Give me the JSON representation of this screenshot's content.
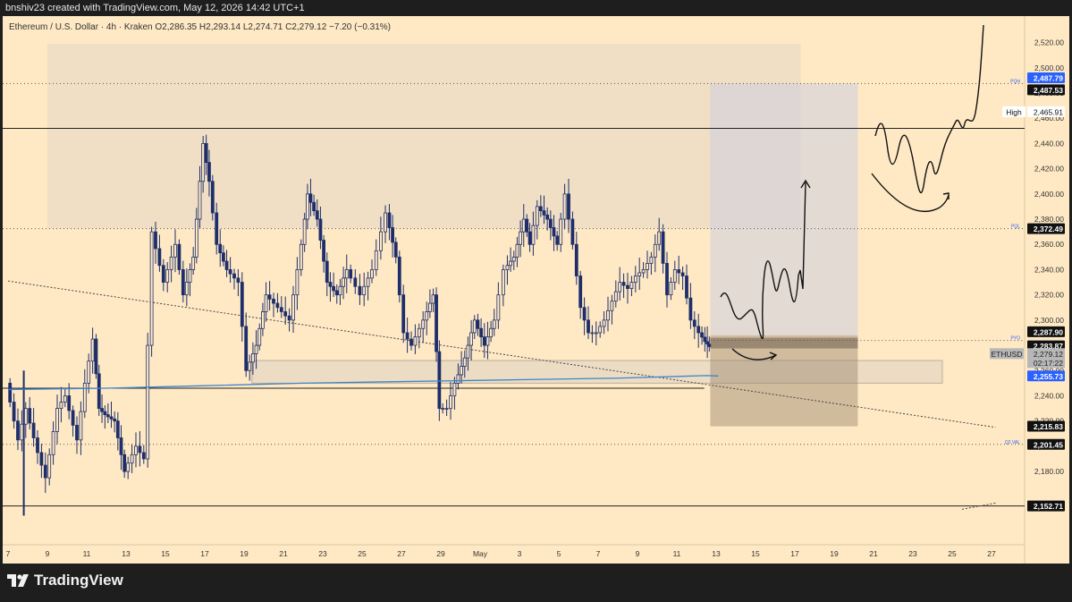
{
  "header": {
    "attribution": "bnshiv23 created with TradingView.com, May 12, 2026 14:42 UTC+1"
  },
  "legend": {
    "symbol": "Ethereum / U.S. Dollar · 4h · Kraken",
    "open": "O2,286.35",
    "high": "H2,293.14",
    "low": "L2,274.71",
    "close": "C2,279.12",
    "change": "−7.20 (−0.31%)"
  },
  "footer": {
    "brand": "TradingView"
  },
  "colors": {
    "background": "#ffe9c4",
    "up": "#1e2e6b",
    "down": "#1e2e6b",
    "ma": "#3d86c9",
    "price_tag": "#000000",
    "ma_tag": "#2962ff",
    "high_tag": "#ffffff"
  },
  "chart_data": {
    "type": "candlestick",
    "symbol": "ETHUSD",
    "timeframe": "4h",
    "ylim": [
      2140,
      2530
    ],
    "y_ticks": [
      2180,
      2200,
      2220,
      2240,
      2260,
      2280,
      2300,
      2320,
      2340,
      2360,
      2380,
      2400,
      2420,
      2440,
      2460,
      2480,
      2500,
      2520
    ],
    "y_tick_labels": [
      "2,180.00",
      "2,200.00",
      "2,220.00",
      "2,240.00",
      "2,260.00",
      "2,280.00",
      "2,300.00",
      "2,320.00",
      "2,340.00",
      "2,360.00",
      "2,380.00",
      "2,400.00",
      "2,420.00",
      "2,440.00",
      "2,460.00",
      "2,480.00",
      "2,500.00",
      "2,520.00"
    ],
    "x_ticks": [
      7,
      9,
      11,
      13,
      15,
      17,
      19,
      21,
      23,
      25,
      27,
      29,
      31,
      33,
      35,
      37,
      39,
      41,
      43,
      45,
      47,
      49,
      51,
      53,
      55,
      57
    ],
    "x_tick_labels": [
      "7",
      "9",
      "11",
      "13",
      "15",
      "17",
      "19",
      "21",
      "23",
      "25",
      "27",
      "29",
      "May",
      "3",
      "5",
      "7",
      "9",
      "11",
      "13",
      "15",
      "17",
      "19",
      "21",
      "23",
      "25",
      "27"
    ],
    "xlim": [
      7,
      57.2
    ],
    "price_path_x": [
      7,
      7.6,
      8,
      8.6,
      9,
      9.6,
      10,
      10.6,
      11,
      11.4,
      11.7,
      12,
      12.5,
      13,
      13.6,
      14,
      14.4,
      15,
      15.6,
      16,
      16.5,
      17,
      17.3,
      17.7,
      18.2,
      18.8,
      19.2,
      19.7,
      20.2,
      20.8,
      21.4,
      22,
      22.3,
      22.8,
      23.3,
      23.8,
      24.3,
      25,
      25.6,
      26.3,
      26.8,
      27.2,
      27.6,
      28.2,
      28.7,
      29,
      29.4,
      29.8,
      30.3,
      30.8,
      31.3,
      31.8,
      32.3,
      32.8,
      33.3,
      33.6,
      34,
      34.5,
      35,
      35.4,
      35.8,
      36.2,
      36.6,
      37,
      37.4,
      37.8,
      38.2,
      38.6,
      39,
      39.4,
      39.8,
      40.2,
      40.6,
      41,
      41.4,
      41.8,
      42.2,
      42.5,
      42.7
    ],
    "price_path_y": [
      2250,
      2205,
      2230,
      2195,
      2175,
      2230,
      2240,
      2205,
      2250,
      2285,
      2230,
      2225,
      2220,
      2180,
      2200,
      2190,
      2370,
      2330,
      2360,
      2320,
      2350,
      2440,
      2410,
      2360,
      2340,
      2330,
      2260,
      2280,
      2320,
      2310,
      2300,
      2360,
      2400,
      2380,
      2330,
      2320,
      2340,
      2320,
      2340,
      2385,
      2350,
      2290,
      2280,
      2300,
      2320,
      2230,
      2230,
      2250,
      2270,
      2300,
      2280,
      2300,
      2340,
      2350,
      2380,
      2360,
      2390,
      2380,
      2360,
      2400,
      2360,
      2310,
      2290,
      2290,
      2300,
      2315,
      2330,
      2325,
      2335,
      2340,
      2350,
      2370,
      2320,
      2340,
      2335,
      2300,
      2290,
      2283,
      2279
    ],
    "moving_average": {
      "x": [
        7,
        12,
        17,
        22,
        26,
        30,
        34,
        38,
        42.5,
        43.1
      ],
      "y": [
        2245,
        2246,
        2248,
        2250,
        2251,
        2252,
        2253,
        2254,
        2256,
        2255.7
      ]
    },
    "price_labels": {
      "pqh": "2,487.79",
      "pqh_level": "2,487.53",
      "high_label": "High",
      "high_value": "2,465.91",
      "pql": "2,372.49",
      "pyo_top": "2,287.90",
      "pyo": "2,283.87",
      "last_symbol": "ETHUSD",
      "last_price": "2,279.12",
      "countdown": "02:17:22",
      "ma_value": "2,255.73",
      "lower_box": "2,215.83",
      "q2val": "2,201.45",
      "bottom": "2,152.71"
    },
    "levels": {
      "pqh": 2487.5,
      "horizontal_high": 2452,
      "pql": 2372.5,
      "pyo": 2283.9,
      "q2val": 2201.5,
      "bottom": 2152.7,
      "support_line": 2246
    },
    "level_tags": {
      "pqh": "PQH",
      "pql": "PQL",
      "pyo": "PYO",
      "q2val": "Q2 VAL"
    },
    "zones": {
      "range_box": {
        "x0": 9,
        "x1": 47.3,
        "y0": 2372.5,
        "y1": 2519
      },
      "demand_box": {
        "x0": 19.4,
        "x1": 54.5,
        "y0": 2250,
        "y1": 2268
      },
      "long_target": {
        "x0": 42.7,
        "x1": 50.2,
        "y0": 2287.9,
        "y1": 2487.5
      },
      "long_stop": {
        "x0": 42.7,
        "x1": 50.2,
        "y0": 2215.8,
        "y1": 2287.9
      }
    },
    "trendline": {
      "x": [
        7,
        57.2
      ],
      "y": [
        2331,
        2215
      ]
    },
    "bottom_ray": {
      "x": [
        55.5,
        57.2
      ],
      "y": [
        2150,
        2155
      ]
    },
    "grid": false,
    "legend_position": "top-left"
  }
}
